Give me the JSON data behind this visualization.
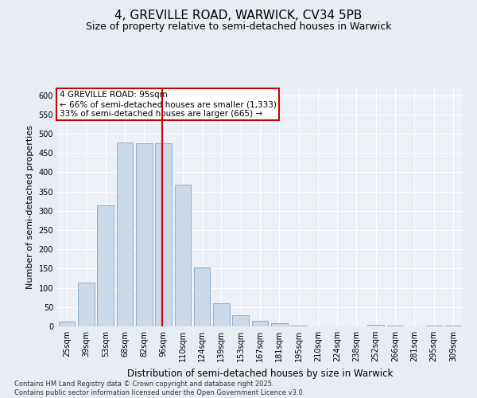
{
  "title": "4, GREVILLE ROAD, WARWICK, CV34 5PB",
  "subtitle": "Size of property relative to semi-detached houses in Warwick",
  "xlabel": "Distribution of semi-detached houses by size in Warwick",
  "ylabel": "Number of semi-detached properties",
  "categories": [
    "25sqm",
    "39sqm",
    "53sqm",
    "68sqm",
    "82sqm",
    "96sqm",
    "110sqm",
    "124sqm",
    "139sqm",
    "153sqm",
    "167sqm",
    "181sqm",
    "195sqm",
    "210sqm",
    "224sqm",
    "238sqm",
    "252sqm",
    "266sqm",
    "281sqm",
    "295sqm",
    "309sqm"
  ],
  "values": [
    12,
    114,
    315,
    478,
    476,
    475,
    368,
    152,
    60,
    29,
    14,
    9,
    3,
    1,
    0,
    0,
    5,
    3,
    0,
    2,
    2
  ],
  "bar_color": "#c9d9ea",
  "bar_edge_color": "#8ab0cc",
  "vline_color": "#cc0000",
  "annotation_title": "4 GREVILLE ROAD: 95sqm",
  "annotation_line1": "← 66% of semi-detached houses are smaller (1,333)",
  "annotation_line2": "33% of semi-detached houses are larger (665) →",
  "annotation_box_color": "#cc0000",
  "ylim": [
    0,
    620
  ],
  "yticks": [
    0,
    50,
    100,
    150,
    200,
    250,
    300,
    350,
    400,
    450,
    500,
    550,
    600
  ],
  "footer_line1": "Contains HM Land Registry data © Crown copyright and database right 2025.",
  "footer_line2": "Contains public sector information licensed under the Open Government Licence v3.0.",
  "bg_color": "#e8edf3",
  "plot_bg_color": "#edf1f7",
  "title_fontsize": 11,
  "subtitle_fontsize": 9,
  "tick_fontsize": 7,
  "ylabel_fontsize": 8,
  "xlabel_fontsize": 8.5,
  "annotation_fontsize": 7.5,
  "footer_fontsize": 6
}
